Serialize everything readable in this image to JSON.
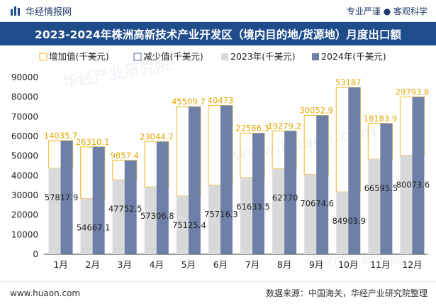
{
  "header": {
    "brand": "华经情报网",
    "tagline": "专业严谨 ● 客观科学",
    "title": "2023-2024年株洲高新技术产业开发区（境内目的地/货源地）月度出口额"
  },
  "footer": {
    "site": "www.huaon.com",
    "source": "数据来源：中国海关，华经产业研究院整理"
  },
  "watermark": {
    "text1": "华经产业研究院",
    "text2": "www.huaon.com"
  },
  "colors": {
    "increase": "#f5c242",
    "decrease": "#6f80a8",
    "y2023": "#d9d9d9",
    "y2024": "#6f80a8",
    "title_bg": "#1f4d8c"
  },
  "chart_data": {
    "type": "bar",
    "categories": [
      "1月",
      "2月",
      "3月",
      "4月",
      "5月",
      "6月",
      "7月",
      "8月",
      "9月",
      "10月",
      "11月",
      "12月"
    ],
    "series": [
      {
        "name": "增加值(千美元)",
        "values": [
          14035.7,
          26310.1,
          9857.4,
          23044.7,
          45509.7,
          40473,
          22586.3,
          19279.2,
          30052.9,
          53187,
          18183.9,
          29793.8
        ]
      },
      {
        "name": "减少值(千美元)",
        "values": [
          null,
          null,
          null,
          null,
          null,
          null,
          null,
          null,
          null,
          null,
          null,
          null
        ]
      },
      {
        "name": "2023年(千美元)",
        "values": [
          43782.2,
          28357.0,
          37895.1,
          34262.1,
          29615.7,
          35243.3,
          39047.2,
          43490.8,
          40621.7,
          31716.9,
          48411.6,
          50279.8
        ]
      },
      {
        "name": "2024年(千美元)",
        "values": [
          57817.9,
          54667.1,
          47752.5,
          57306.8,
          75125.4,
          75716.3,
          61633.5,
          62770,
          70674.6,
          84903.9,
          66595.5,
          80073.6
        ]
      }
    ],
    "labels_increase": [
      "14035.7",
      "26310.1",
      "9857.4",
      "23044.7",
      "45509.7",
      "40473",
      "22586.3",
      "19279.2",
      "30052.9",
      "53187",
      "18183.9",
      "29793.8"
    ],
    "labels_2024": [
      "57817.9",
      "54667.1",
      "47752.5",
      "57306.8",
      "75125.4",
      "75716.3",
      "61633.5",
      "62770",
      "70674.6",
      "84903.9",
      "66595.5",
      "80073.6"
    ],
    "yticks": [
      "0",
      "10000",
      "20000",
      "30000",
      "40000",
      "50000",
      "60000",
      "70000",
      "80000",
      "90000"
    ],
    "ylim": [
      0,
      90000
    ],
    "legend_position": "top-left",
    "grid": false
  }
}
